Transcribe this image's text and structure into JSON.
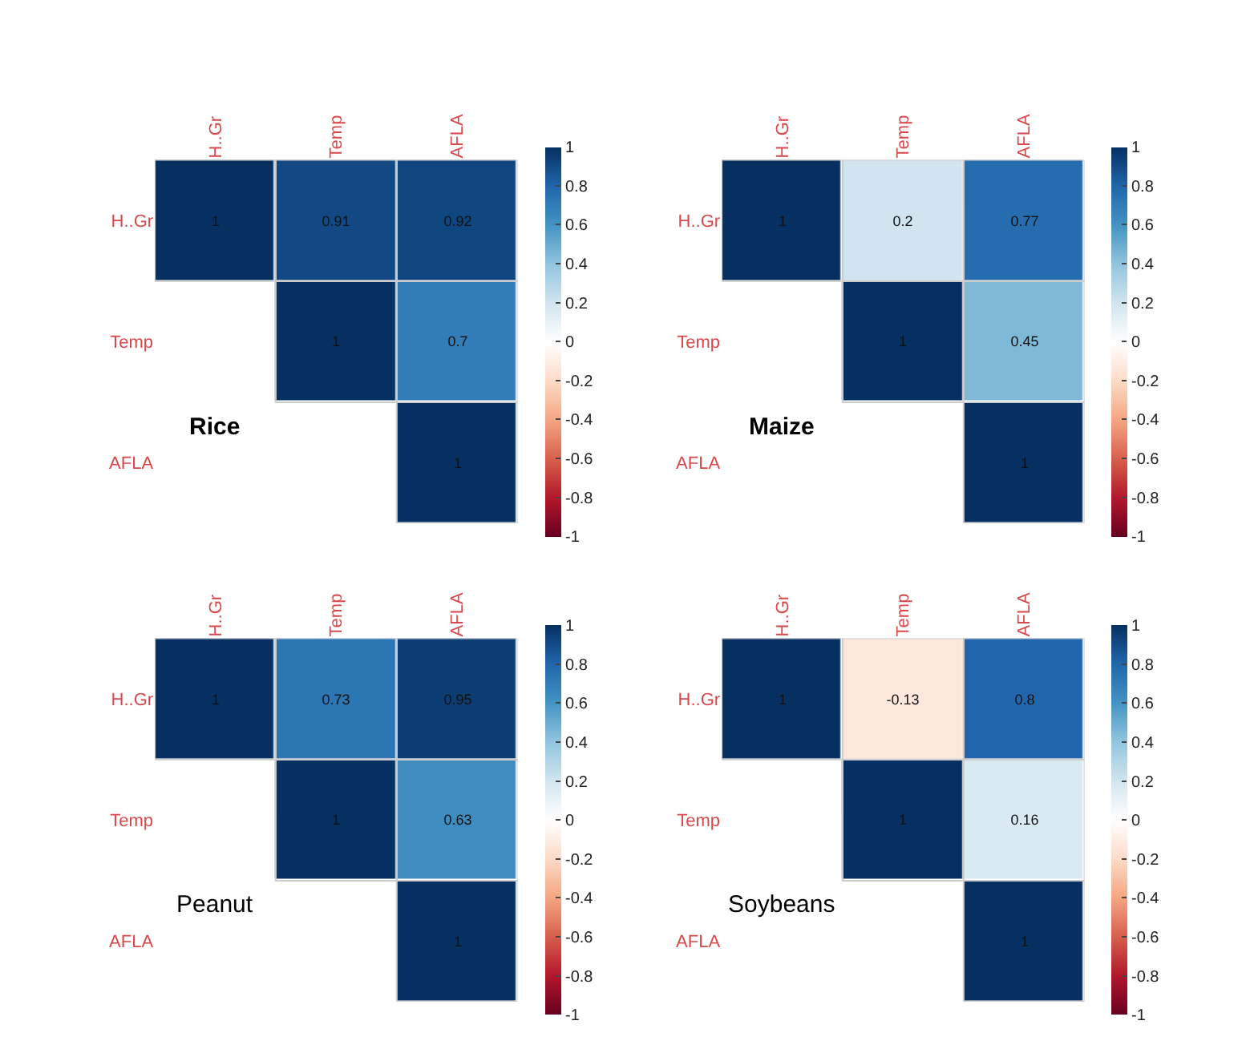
{
  "chart_data": [
    {
      "type": "heatmap",
      "title": "Rice",
      "categories": [
        "H..Gr",
        "Temp",
        "AFLA"
      ],
      "y_categories": [
        "H..Gr",
        "Temp",
        "AFLA"
      ],
      "cells": [
        [
          1,
          0.91,
          0.92
        ],
        [
          null,
          1,
          0.7
        ],
        [
          null,
          null,
          1
        ]
      ],
      "clim": [
        -1,
        1
      ],
      "cticks": [
        -1,
        -0.8,
        -0.6,
        -0.4,
        -0.2,
        0,
        0.2,
        0.4,
        0.6,
        0.8,
        1
      ],
      "data_labels": true
    },
    {
      "type": "heatmap",
      "title": "Maize",
      "categories": [
        "H..Gr",
        "Temp",
        "AFLA"
      ],
      "y_categories": [
        "H..Gr",
        "Temp",
        "AFLA"
      ],
      "cells": [
        [
          1,
          0.2,
          0.77
        ],
        [
          null,
          1,
          0.45
        ],
        [
          null,
          null,
          1
        ]
      ],
      "clim": [
        -1,
        1
      ],
      "cticks": [
        -1,
        -0.8,
        -0.6,
        -0.4,
        -0.2,
        0,
        0.2,
        0.4,
        0.6,
        0.8,
        1
      ],
      "data_labels": true
    },
    {
      "type": "heatmap",
      "title": "Peanut",
      "categories": [
        "H..Gr",
        "Temp",
        "AFLA"
      ],
      "y_categories": [
        "H..Gr",
        "Temp",
        "AFLA"
      ],
      "cells": [
        [
          1,
          0.73,
          0.95
        ],
        [
          null,
          1,
          0.63
        ],
        [
          null,
          null,
          1
        ]
      ],
      "clim": [
        -1,
        1
      ],
      "cticks": [
        -1,
        -0.8,
        -0.6,
        -0.4,
        -0.2,
        0,
        0.2,
        0.4,
        0.6,
        0.8,
        1
      ],
      "data_labels": true
    },
    {
      "type": "heatmap",
      "title": "Soybeans",
      "categories": [
        "H..Gr",
        "Temp",
        "AFLA"
      ],
      "y_categories": [
        "H..Gr",
        "Temp",
        "AFLA"
      ],
      "cells": [
        [
          1,
          -0.13,
          0.8
        ],
        [
          null,
          1,
          0.16
        ],
        [
          null,
          null,
          1
        ]
      ],
      "clim": [
        -1,
        1
      ],
      "cticks": [
        -1,
        -0.8,
        -0.6,
        -0.4,
        -0.2,
        0,
        0.2,
        0.4,
        0.6,
        0.8,
        1
      ],
      "data_labels": true
    }
  ]
}
